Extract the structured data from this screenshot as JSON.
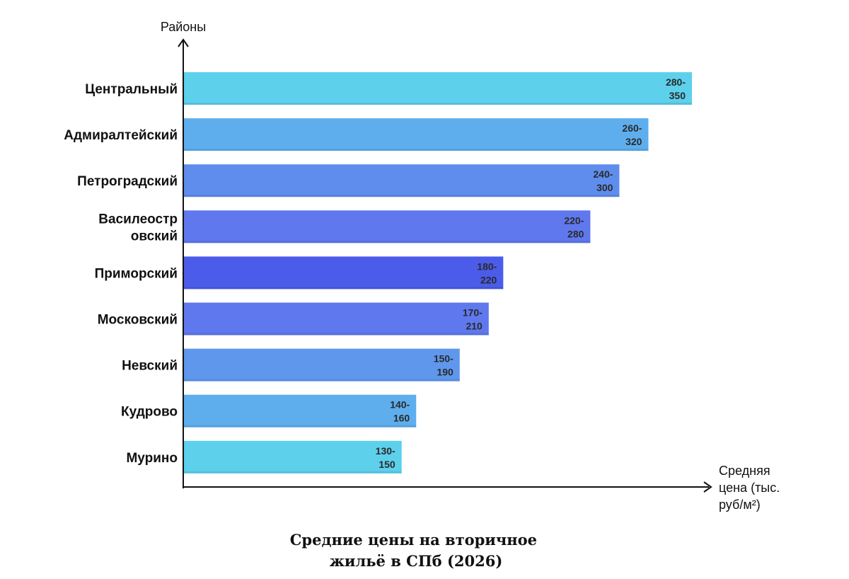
{
  "chart_data": {
    "type": "bar",
    "orientation": "horizontal",
    "title": "Средние цены на вторичное жильё в СПб (2026)",
    "title_lines": [
      "Средние цены на вторичное",
      "жильё в СПб (2026)"
    ],
    "ylabel": "Районы",
    "xlabel": "Средняя цена (тыс. руб/м²)",
    "xlabel_lines": [
      "Средняя",
      "цена (тыс.",
      "руб/м²)"
    ],
    "categories": [
      "Центральный",
      "Адмиралтейский",
      "Петроградский",
      "Василеостровский",
      "Приморский",
      "Московский",
      "Невский",
      "Кудрово",
      "Мурино"
    ],
    "category_lines": [
      [
        "Центральный"
      ],
      [
        "Адмиралтейский"
      ],
      [
        "Петроградский"
      ],
      [
        "Василеостр",
        "овский"
      ],
      [
        "Приморский"
      ],
      [
        "Московский"
      ],
      [
        "Невский"
      ],
      [
        "Кудрово"
      ],
      [
        "Мурино"
      ]
    ],
    "series": [
      {
        "ranges": [
          [
            280,
            350
          ],
          [
            260,
            320
          ],
          [
            240,
            300
          ],
          [
            220,
            280
          ],
          [
            180,
            220
          ],
          [
            170,
            210
          ],
          [
            150,
            190
          ],
          [
            140,
            160
          ],
          [
            130,
            150
          ]
        ],
        "values": [
          350,
          320,
          300,
          280,
          220,
          210,
          190,
          160,
          150
        ]
      }
    ],
    "data_labels": [
      [
        "280-",
        "350"
      ],
      [
        "260-",
        "320"
      ],
      [
        "240-",
        "300"
      ],
      [
        "220-",
        "280"
      ],
      [
        "180-",
        "220"
      ],
      [
        "170-",
        "210"
      ],
      [
        "150-",
        "190"
      ],
      [
        "140-",
        "160"
      ],
      [
        "130-",
        "150"
      ]
    ],
    "colors": [
      "#5dd0ec",
      "#5eaeee",
      "#5f8ded",
      "#5f78ee",
      "#4b5cea",
      "#5f78ee",
      "#5f97ed",
      "#5eaeee",
      "#5dd0ec"
    ],
    "grid": false,
    "legend": "none"
  }
}
